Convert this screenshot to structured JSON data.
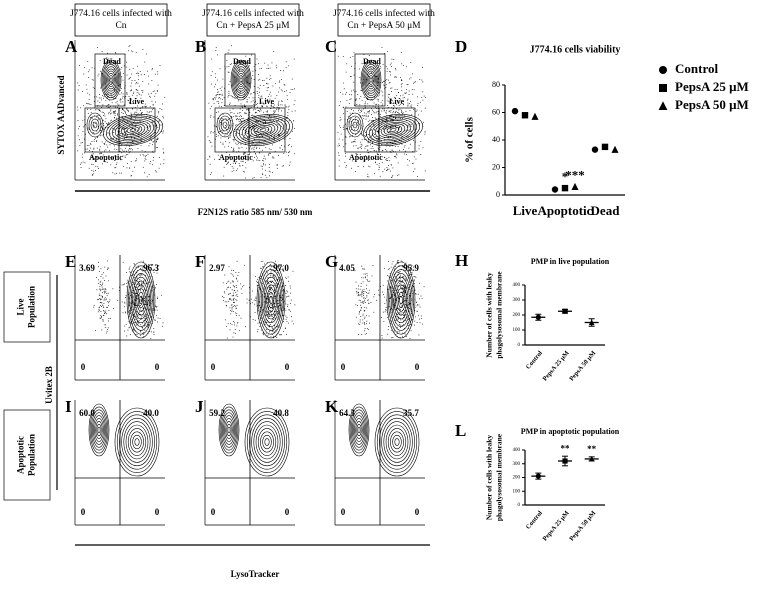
{
  "figure": {
    "headers": [
      "J774.16 cells infected with Cn",
      "J774.16 cells infected with Cn + PepsA 25 μM",
      "J774.16 cells infected with Cn + PepsA 50 μM"
    ],
    "viability_panels": [
      {
        "letter": "A"
      },
      {
        "letter": "B"
      },
      {
        "letter": "C"
      }
    ],
    "gate_labels": [
      "Dead",
      "Live",
      "Apoptotic"
    ],
    "viability_y_label": "SYTOX AADvanced",
    "viability_x_label": "F2N12S ratio 585 nm/ 530 nm",
    "pmp_rows": [
      {
        "label": "Live Population",
        "panels": [
          {
            "letter": "E",
            "quadrants": [
              "3.69",
              "96.3",
              "0",
              "0"
            ]
          },
          {
            "letter": "F",
            "quadrants": [
              "2.97",
              "97.0",
              "0",
              "0"
            ]
          },
          {
            "letter": "G",
            "quadrants": [
              "4.05",
              "95.9",
              "0",
              "0"
            ]
          }
        ]
      },
      {
        "label": "Apoptotic Population",
        "panels": [
          {
            "letter": "I",
            "quadrants": [
              "60.0",
              "40.0",
              "0",
              "0"
            ]
          },
          {
            "letter": "J",
            "quadrants": [
              "59.2",
              "40.8",
              "0",
              "0"
            ]
          },
          {
            "letter": "K",
            "quadrants": [
              "64.3",
              "35.7",
              "0",
              "0"
            ]
          }
        ]
      }
    ],
    "pmp_y_label": "Uvitex 2B",
    "pmp_x_label": "LysoTracker"
  },
  "chart_data": [
    {
      "type": "dot",
      "panel_letter": "D",
      "title": "J774.16 cells viability",
      "y_label": "% of cells",
      "categories": [
        "Live",
        "Apoptotic",
        "Dead"
      ],
      "series": [
        {
          "name": "Control",
          "marker": "circle",
          "color": "#000000",
          "values": [
            61,
            4,
            33
          ],
          "significance": [
            null,
            null,
            null
          ]
        },
        {
          "name": "PepsA 25 μM",
          "marker": "square",
          "color": "#000000",
          "values": [
            58,
            5,
            35
          ],
          "significance": [
            null,
            "*",
            null
          ]
        },
        {
          "name": "PepsA 50 μM",
          "marker": "triangle",
          "color": "#000000",
          "values": [
            57,
            6,
            33
          ],
          "significance": [
            null,
            "***",
            null
          ]
        }
      ],
      "ylim": [
        0,
        80
      ],
      "yticks": [
        0,
        20,
        40,
        60,
        80
      ]
    },
    {
      "type": "mean-error",
      "panel_letter": "H",
      "title": "PMP in live population",
      "y_label": [
        "Number of cells with leaky",
        "phagolysosomal membrane"
      ],
      "categories": [
        "Control",
        "PepsA 25 μM",
        "PepsA 50 μM"
      ],
      "markers": [
        "circle",
        "square",
        "triangle"
      ],
      "values": [
        185,
        225,
        150
      ],
      "errors": [
        20,
        12,
        25
      ],
      "significance": [
        null,
        null,
        null
      ],
      "color": "#000000",
      "ylim": [
        0,
        400
      ],
      "yticks": [
        0,
        100,
        200,
        300,
        400
      ]
    },
    {
      "type": "mean-error",
      "panel_letter": "L",
      "title": "PMP in apoptotic population",
      "y_label": [
        "Number of cells with leaky",
        "phagolysosomal membrane"
      ],
      "categories": [
        "Control",
        "PepsA 25 μM",
        "PepsA 50 μM"
      ],
      "markers": [
        "circle",
        "square",
        "triangle"
      ],
      "values": [
        210,
        320,
        335
      ],
      "errors": [
        22,
        35,
        15
      ],
      "significance": [
        null,
        "**",
        "**"
      ],
      "color": "#000000",
      "ylim": [
        0,
        400
      ],
      "yticks": [
        0,
        100,
        200,
        300,
        400
      ]
    }
  ]
}
